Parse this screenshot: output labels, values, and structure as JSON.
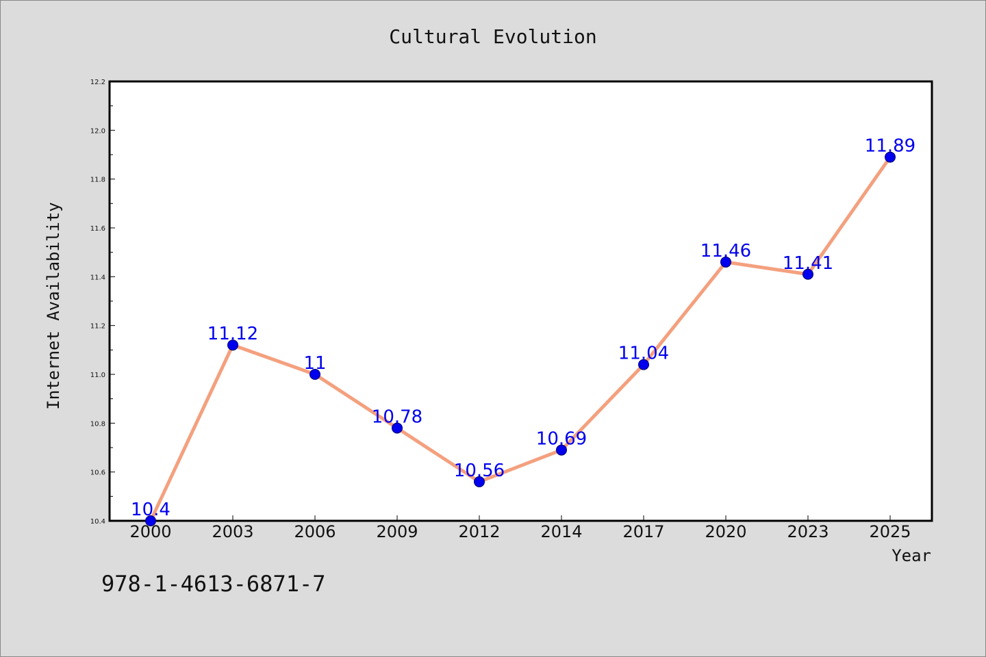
{
  "chart_data": {
    "type": "line",
    "title": "Cultural Evolution",
    "xlabel": "Year",
    "ylabel": "Internet Availability",
    "categories": [
      "2000",
      "2003",
      "2006",
      "2009",
      "2012",
      "2014",
      "2017",
      "2020",
      "2023",
      "2025"
    ],
    "series": [
      {
        "values": [
          10.4,
          11.12,
          11.0,
          10.78,
          10.56,
          10.69,
          11.04,
          11.46,
          11.41,
          11.89
        ],
        "labels": [
          "10.4",
          "11.12",
          "11",
          "10.78",
          "10.56",
          "10.69",
          "11.04",
          "11.46",
          "11.41",
          "11.89"
        ]
      }
    ],
    "ylim": [
      10.4,
      12.2
    ],
    "yticks": [
      "10.4",
      "10.6",
      "10.8",
      "11.0",
      "11.2",
      "11.4",
      "11.6",
      "11.8",
      "12.0",
      "12.2"
    ],
    "grid": false,
    "colors": {
      "line": "#f4a07e",
      "marker": "#0000ee",
      "label": "#0000ee",
      "background": "#dcdcdc",
      "plot_area": "#ffffff"
    }
  },
  "annotation": "978-1-4613-6871-7"
}
